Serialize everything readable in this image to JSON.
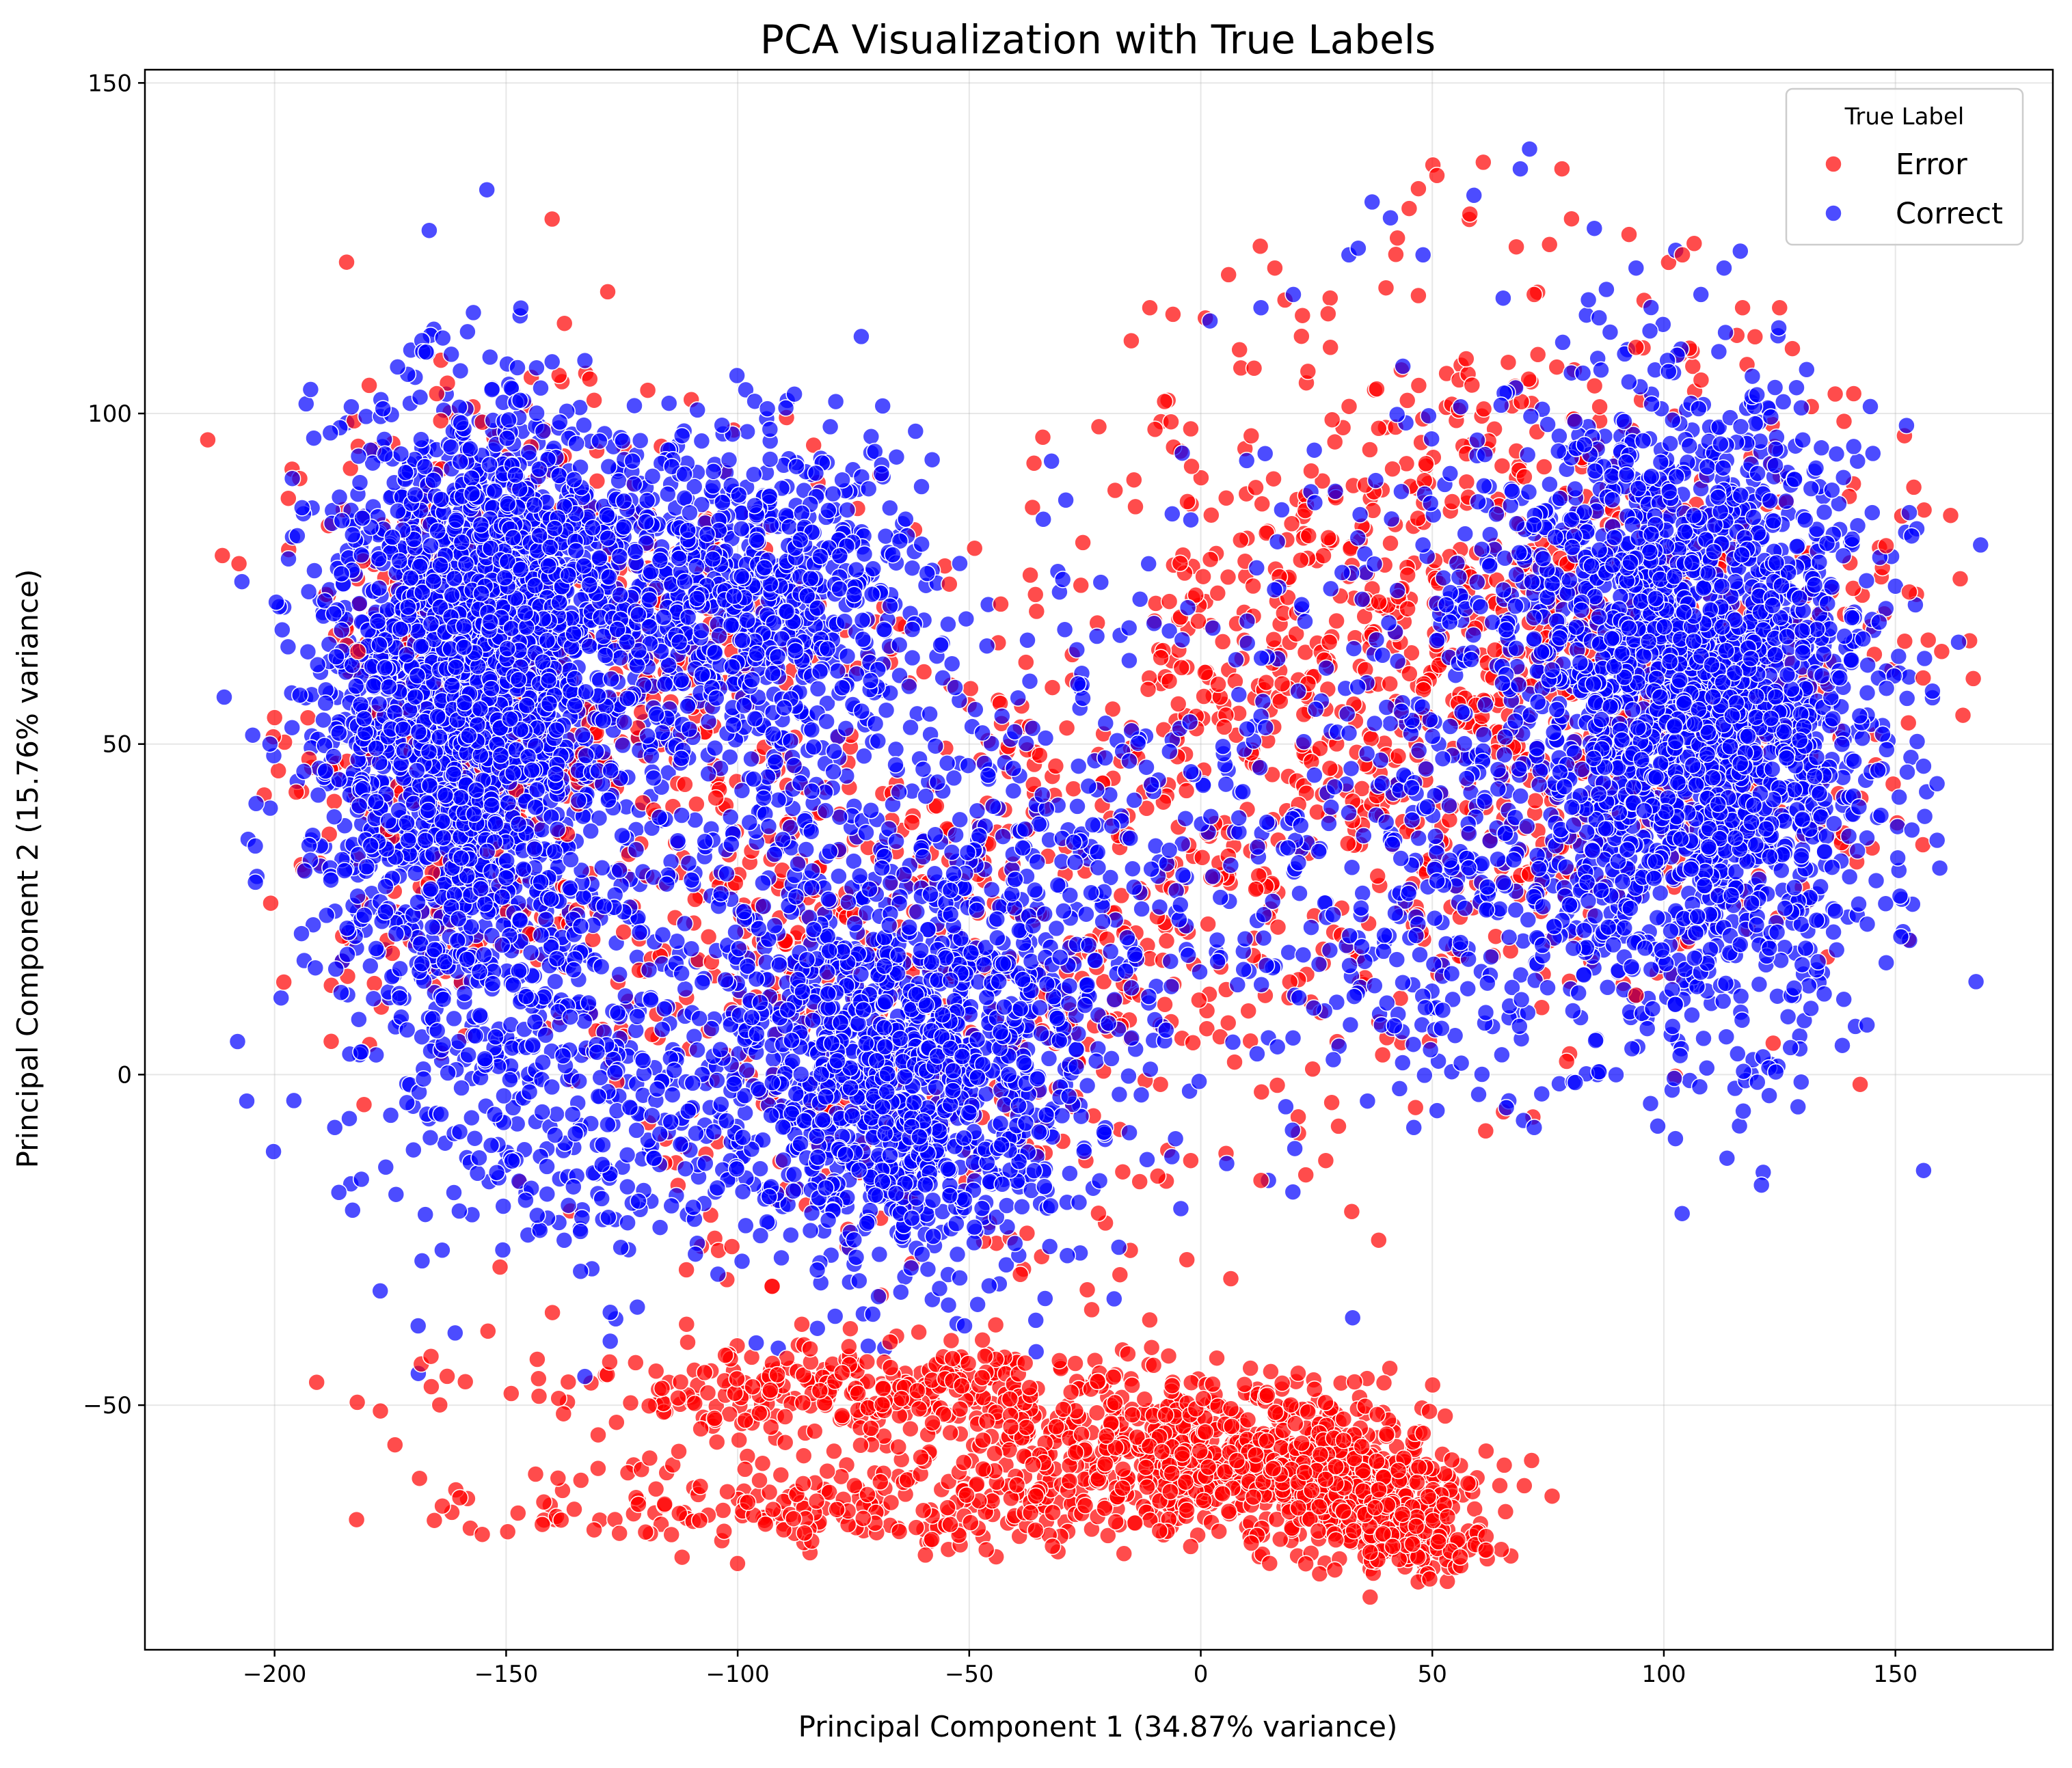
{
  "chart_data": {
    "type": "scatter",
    "title": "PCA Visualization with True Labels",
    "xlabel": "Principal Component 1 (34.87% variance)",
    "ylabel": "Principal Component 2 (15.76% variance)",
    "xlim": [
      -228,
      184
    ],
    "ylim": [
      -87,
      152
    ],
    "xticks": [
      -200,
      -150,
      -100,
      -50,
      0,
      50,
      100,
      150
    ],
    "xtick_labels": [
      "−200",
      "−150",
      "−100",
      "−50",
      "0",
      "50",
      "100",
      "150"
    ],
    "yticks": [
      -50,
      0,
      50,
      100,
      150
    ],
    "ytick_labels": [
      "−50",
      "0",
      "50",
      "100",
      "150"
    ],
    "grid": true,
    "legend": {
      "title": "True Label",
      "position": "upper right",
      "entries": [
        {
          "label": "Error",
          "color": "#ff0000"
        },
        {
          "label": "Correct",
          "color": "#0000ff"
        }
      ]
    },
    "series": [
      {
        "name": "Error",
        "color": "#ff0000",
        "clusters": [
          {
            "center": [
              -160,
              55
            ],
            "spread": [
              20,
              25
            ],
            "count": 350
          },
          {
            "center": [
              -120,
              65
            ],
            "spread": [
              20,
              18
            ],
            "count": 150
          },
          {
            "center": [
              -80,
              15
            ],
            "spread": [
              30,
              25
            ],
            "count": 350
          },
          {
            "center": [
              -30,
              20
            ],
            "spread": [
              35,
              25
            ],
            "count": 250
          },
          {
            "center": [
              20,
              55
            ],
            "spread": [
              25,
              25
            ],
            "count": 400
          },
          {
            "center": [
              70,
              65
            ],
            "spread": [
              25,
              25
            ],
            "count": 450
          },
          {
            "center": [
              110,
              60
            ],
            "spread": [
              22,
              22
            ],
            "count": 300
          },
          {
            "center": [
              -70,
              -48
            ],
            "spread": [
              40,
              4
            ],
            "count": 350
          },
          {
            "center": [
              -60,
              -65
            ],
            "spread": [
              45,
              3.5
            ],
            "count": 300
          },
          {
            "center": [
              0,
              -57
            ],
            "spread": [
              25,
              5
            ],
            "count": 500
          },
          {
            "center": [
              33,
              -62
            ],
            "spread": [
              12,
              5
            ],
            "count": 300
          },
          {
            "center": [
              45,
              -70
            ],
            "spread": [
              8,
              3
            ],
            "count": 150
          }
        ],
        "points": [
          [
            -200,
            54
          ],
          [
            -198,
            14
          ],
          [
            -182,
            64
          ],
          [
            -174,
            -56
          ],
          [
            -165,
            103
          ],
          [
            -160,
            -64
          ],
          [
            -140,
            -36
          ],
          [
            -131,
            102
          ],
          [
            -119,
            -58
          ],
          [
            -112,
            -73
          ],
          [
            -105,
            -52
          ],
          [
            -94,
            -68
          ],
          [
            -22,
            98
          ],
          [
            -15,
            111
          ],
          [
            -11,
            116
          ],
          [
            -6,
            115
          ],
          [
            -2,
            92
          ],
          [
            6,
            121
          ],
          [
            16,
            122
          ],
          [
            28,
            110
          ],
          [
            40,
            119
          ],
          [
            45,
            131
          ],
          [
            47,
            134
          ],
          [
            51,
            136
          ],
          [
            61,
            138
          ],
          [
            72,
            118
          ],
          [
            78,
            137
          ],
          [
            94,
            110
          ],
          [
            104,
            124
          ],
          [
            117,
            116
          ],
          [
            125,
            116
          ],
          [
            141,
            103
          ],
          [
            148,
            80
          ],
          [
            153,
            73
          ],
          [
            156,
            60
          ],
          [
            160,
            64
          ],
          [
            164,
            75
          ],
          [
            -3,
            -28
          ],
          [
            13,
            -16
          ],
          [
            27,
            -13
          ],
          [
            79,
            2
          ],
          [
            94,
            12
          ],
          [
            125,
            7
          ]
        ]
      },
      {
        "name": "Correct",
        "color": "#0000ff",
        "clusters": [
          {
            "center": [
              -160,
              55
            ],
            "spread": [
              16,
              22
            ],
            "count": 1800
          },
          {
            "center": [
              -145,
              75
            ],
            "spread": [
              15,
              12
            ],
            "count": 600
          },
          {
            "center": [
              -95,
              72
            ],
            "spread": [
              18,
              12
            ],
            "count": 700
          },
          {
            "center": [
              -100,
              40
            ],
            "spread": [
              25,
              22
            ],
            "count": 300
          },
          {
            "center": [
              -65,
              0
            ],
            "spread": [
              20,
              15
            ],
            "count": 1200
          },
          {
            "center": [
              -40,
              25
            ],
            "spread": [
              25,
              20
            ],
            "count": 300
          },
          {
            "center": [
              -150,
              15
            ],
            "spread": [
              18,
              20
            ],
            "count": 300
          },
          {
            "center": [
              -130,
              -10
            ],
            "spread": [
              15,
              12
            ],
            "count": 150
          },
          {
            "center": [
              30,
              40
            ],
            "spread": [
              30,
              25
            ],
            "count": 300
          },
          {
            "center": [
              110,
              52
            ],
            "spread": [
              18,
              22
            ],
            "count": 1800
          },
          {
            "center": [
              90,
              75
            ],
            "spread": [
              22,
              15
            ],
            "count": 500
          },
          {
            "center": [
              70,
              30
            ],
            "spread": [
              25,
              15
            ],
            "count": 250
          }
        ],
        "points": [
          [
            -208,
            5
          ],
          [
            -206,
            -4
          ],
          [
            -204,
            41
          ],
          [
            -201,
            50
          ],
          [
            -197,
            78
          ],
          [
            -187,
            -8
          ],
          [
            -176,
            -14
          ],
          [
            -169,
            -38
          ],
          [
            -147,
            102
          ],
          [
            -133,
            108
          ],
          [
            -80,
            98
          ],
          [
            -58,
            93
          ],
          [
            -51,
            -38
          ],
          [
            -34,
            84
          ],
          [
            -4,
            94
          ],
          [
            2,
            114
          ],
          [
            13,
            116
          ],
          [
            20,
            118
          ],
          [
            32,
            124
          ],
          [
            34,
            125
          ],
          [
            37,
            132
          ],
          [
            48,
            124
          ],
          [
            59,
            133
          ],
          [
            69,
            137
          ],
          [
            71,
            140
          ],
          [
            85,
            128
          ],
          [
            94,
            122
          ],
          [
            108,
            118
          ],
          [
            113,
            122
          ],
          [
            130,
            96
          ],
          [
            141,
            95
          ],
          [
            145,
            85
          ],
          [
            153,
            85
          ],
          [
            158,
            57
          ],
          [
            159,
            44
          ],
          [
            158,
            58
          ],
          [
            151,
            27
          ],
          [
            60,
            -3
          ],
          [
            65,
            3
          ],
          [
            66,
            -5
          ],
          [
            72,
            -8
          ],
          [
            36,
            -4
          ],
          [
            46,
            -8
          ],
          [
            52,
            7
          ]
        ]
      }
    ]
  }
}
